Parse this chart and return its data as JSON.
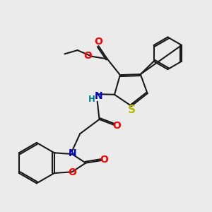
{
  "bg_color": "#ebebeb",
  "bond_color": "#1a1a1a",
  "bond_width": 1.5,
  "dbo": 0.055,
  "atom_colors": {
    "O": "#ff0000",
    "N": "#0000cc",
    "S": "#b8b800",
    "H": "#008080",
    "C": "#1a1a1a"
  },
  "font_size": 9.5,
  "fig_size": [
    3.0,
    3.0
  ],
  "dpi": 100
}
